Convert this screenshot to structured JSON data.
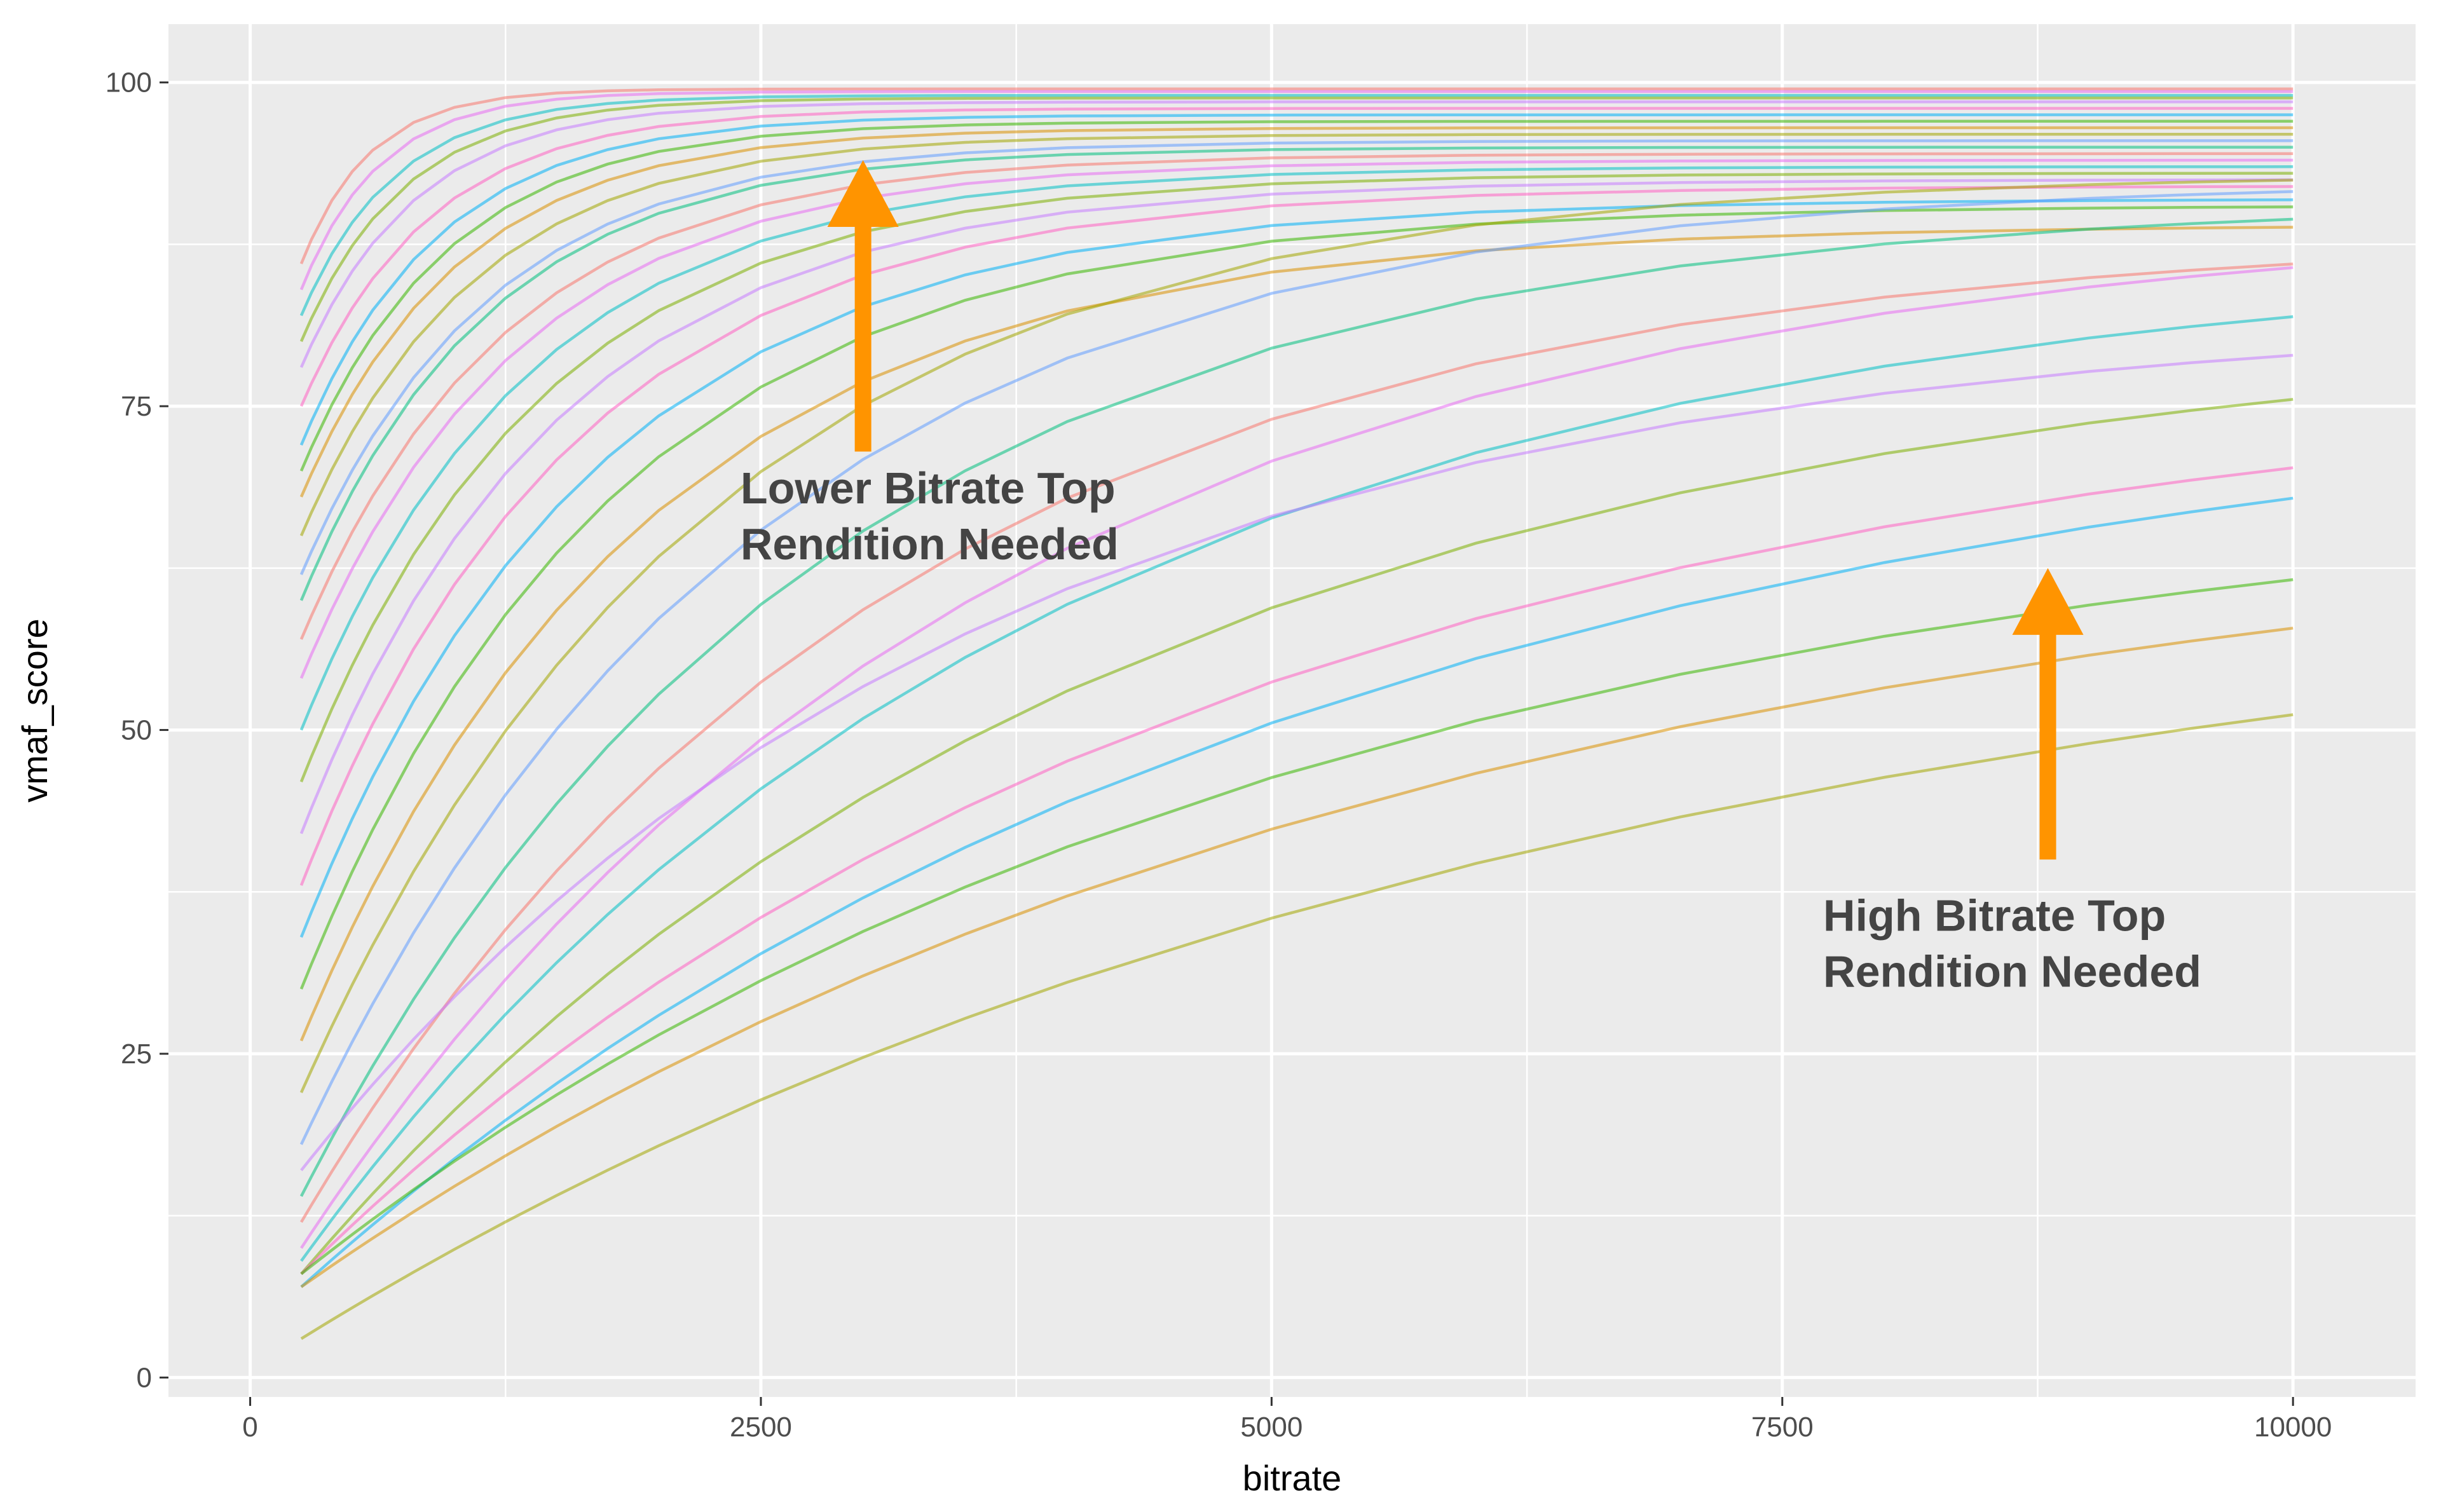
{
  "chart_data": {
    "type": "line",
    "title": "",
    "xlabel": "bitrate",
    "ylabel": "vmaf_score",
    "xlim": [
      -400,
      10600
    ],
    "ylim": [
      -1.5,
      104.5
    ],
    "x_ticks": [
      0,
      2500,
      5000,
      7500,
      10000
    ],
    "x_tick_labels": [
      "0",
      "2500",
      "5000",
      "7500",
      "10000"
    ],
    "y_ticks": [
      0,
      25,
      50,
      75,
      100
    ],
    "y_tick_labels": [
      "0",
      "25",
      "50",
      "75",
      "100"
    ],
    "grid": true,
    "legend": "none",
    "series_x": [
      250,
      300,
      400,
      500,
      600,
      800,
      1000,
      1250,
      1500,
      1750,
      2000,
      2500,
      3000,
      3500,
      4000,
      5000,
      6000,
      7000,
      8000,
      9000,
      9500,
      10000
    ],
    "series_style": {
      "opacity": 0.55,
      "palette": [
        "#f8766d",
        "#e76bf3",
        "#00bfc4",
        "#7cae00",
        "#c77cff",
        "#ff61c3",
        "#00b0f6",
        "#39b600",
        "#d89000",
        "#a3a500",
        "#619cff",
        "#00bf7d"
      ]
    },
    "series": [
      {
        "start": 86,
        "end": 99.5,
        "k": 0.003
      },
      {
        "start": 84,
        "end": 99.3,
        "k": 0.0026
      },
      {
        "start": 82,
        "end": 99.0,
        "k": 0.0022
      },
      {
        "start": 80,
        "end": 98.8,
        "k": 0.002
      },
      {
        "start": 78,
        "end": 98.5,
        "k": 0.0018
      },
      {
        "start": 75,
        "end": 98.0,
        "k": 0.0016
      },
      {
        "start": 72,
        "end": 97.5,
        "k": 0.0015
      },
      {
        "start": 70,
        "end": 97.0,
        "k": 0.0014
      },
      {
        "start": 68,
        "end": 96.5,
        "k": 0.0013
      },
      {
        "start": 65,
        "end": 96.0,
        "k": 0.0012
      },
      {
        "start": 62,
        "end": 95.5,
        "k": 0.0011
      },
      {
        "start": 60,
        "end": 95.0,
        "k": 0.0011
      },
      {
        "start": 57,
        "end": 94.5,
        "k": 0.001
      },
      {
        "start": 54,
        "end": 94.0,
        "k": 0.00095
      },
      {
        "start": 50,
        "end": 93.5,
        "k": 0.0009
      },
      {
        "start": 46,
        "end": 93.0,
        "k": 0.00085
      },
      {
        "start": 42,
        "end": 92.5,
        "k": 0.0008
      },
      {
        "start": 38,
        "end": 92.0,
        "k": 0.00075
      },
      {
        "start": 34,
        "end": 91.0,
        "k": 0.0007
      },
      {
        "start": 30,
        "end": 90.5,
        "k": 0.00065
      },
      {
        "start": 26,
        "end": 89.0,
        "k": 0.0006
      },
      {
        "start": 22,
        "end": 93.0,
        "k": 0.0005
      },
      {
        "start": 18,
        "end": 92.5,
        "k": 0.00045
      },
      {
        "start": 14,
        "end": 91.0,
        "k": 0.0004
      },
      {
        "start": 12,
        "end": 88.5,
        "k": 0.00035
      },
      {
        "start": 10,
        "end": 90.0,
        "k": 0.0003
      },
      {
        "start": 9,
        "end": 87.0,
        "k": 0.00028
      },
      {
        "start": 8,
        "end": 82.0,
        "k": 0.00025
      },
      {
        "start": 16,
        "end": 82.5,
        "k": 0.0003
      },
      {
        "start": 8,
        "end": 78.5,
        "k": 0.00022
      },
      {
        "start": 7,
        "end": 78.0,
        "k": 0.0002
      },
      {
        "start": 8,
        "end": 70.5,
        "k": 0.0002
      },
      {
        "start": 7,
        "end": 68.5,
        "k": 0.00018
      },
      {
        "start": 3,
        "end": 64.0,
        "k": 0.00016
      }
    ],
    "annotations": [
      {
        "lines": [
          "Lower Bitrate Top",
          "Rendition Needed"
        ],
        "arrow_x": 3000,
        "arrow_from_y": 71.5,
        "arrow_to_y": 94,
        "text_x": 2400,
        "text_y": 67.5,
        "color": "#ff9400"
      },
      {
        "lines": [
          "High Bitrate Top",
          "Rendition Needed"
        ],
        "arrow_x": 8800,
        "arrow_from_y": 40,
        "arrow_to_y": 62.5,
        "text_x": 7700,
        "text_y": 34.5,
        "color": "#ff9400"
      }
    ]
  }
}
